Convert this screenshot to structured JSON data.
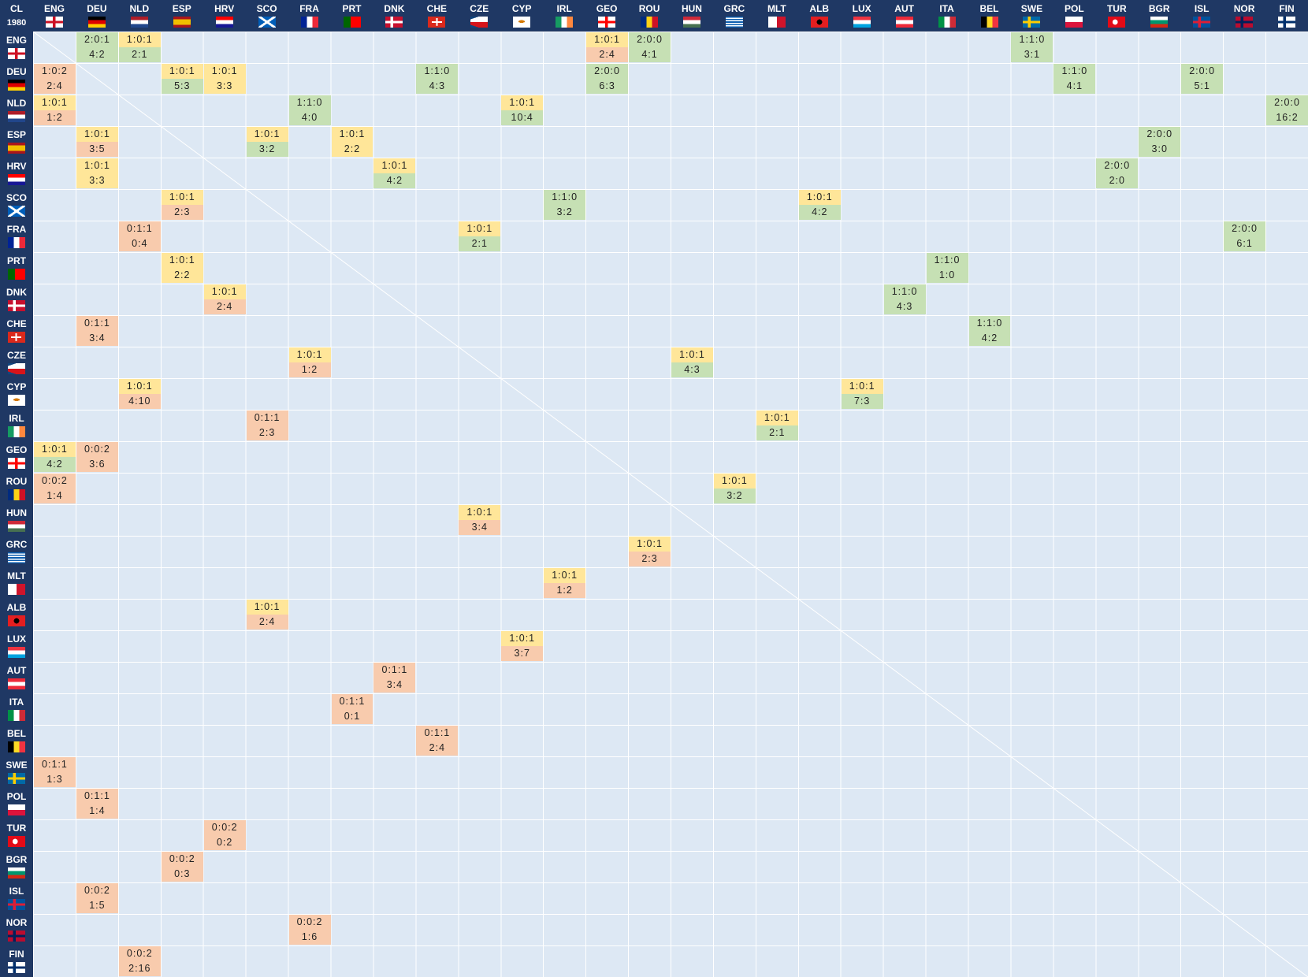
{
  "corner": {
    "label": "CL",
    "year": "1980"
  },
  "teams": [
    "ENG",
    "DEU",
    "NLD",
    "ESP",
    "HRV",
    "SCO",
    "FRA",
    "PRT",
    "DNK",
    "CHE",
    "CZE",
    "CYP",
    "IRL",
    "GEO",
    "ROU",
    "HUN",
    "GRC",
    "MLT",
    "ALB",
    "LUX",
    "AUT",
    "ITA",
    "BEL",
    "SWE",
    "POL",
    "TUR",
    "BGR",
    "ISL",
    "NOR",
    "FIN"
  ],
  "matrix": [
    [
      null,
      {
        "record": "2:0:1",
        "score": "4:2"
      },
      {
        "record": "1:0:1",
        "score": "2:1"
      },
      null,
      null,
      null,
      null,
      null,
      null,
      null,
      null,
      null,
      null,
      {
        "record": "1:0:1",
        "score": "2:4"
      },
      {
        "record": "2:0:0",
        "score": "4:1"
      },
      null,
      null,
      null,
      null,
      null,
      null,
      null,
      null,
      {
        "record": "1:1:0",
        "score": "3:1"
      },
      null,
      null,
      null,
      null,
      null,
      null
    ],
    [
      {
        "record": "1:0:2",
        "score": "2:4"
      },
      null,
      null,
      {
        "record": "1:0:1",
        "score": "5:3"
      },
      {
        "record": "1:0:1",
        "score": "3:3"
      },
      null,
      null,
      null,
      null,
      {
        "record": "1:1:0",
        "score": "4:3"
      },
      null,
      null,
      null,
      {
        "record": "2:0:0",
        "score": "6:3"
      },
      null,
      null,
      null,
      null,
      null,
      null,
      null,
      null,
      null,
      null,
      {
        "record": "1:1:0",
        "score": "4:1"
      },
      null,
      null,
      {
        "record": "2:0:0",
        "score": "5:1"
      },
      null,
      null
    ],
    [
      {
        "record": "1:0:1",
        "score": "1:2"
      },
      null,
      null,
      null,
      null,
      null,
      {
        "record": "1:1:0",
        "score": "4:0"
      },
      null,
      null,
      null,
      null,
      {
        "record": "1:0:1",
        "score": "10:4"
      },
      null,
      null,
      null,
      null,
      null,
      null,
      null,
      null,
      null,
      null,
      null,
      null,
      null,
      null,
      null,
      null,
      null,
      {
        "record": "2:0:0",
        "score": "16:2"
      }
    ],
    [
      null,
      {
        "record": "1:0:1",
        "score": "3:5"
      },
      null,
      null,
      null,
      {
        "record": "1:0:1",
        "score": "3:2"
      },
      null,
      {
        "record": "1:0:1",
        "score": "2:2"
      },
      null,
      null,
      null,
      null,
      null,
      null,
      null,
      null,
      null,
      null,
      null,
      null,
      null,
      null,
      null,
      null,
      null,
      null,
      {
        "record": "2:0:0",
        "score": "3:0"
      },
      null,
      null,
      null
    ],
    [
      null,
      {
        "record": "1:0:1",
        "score": "3:3"
      },
      null,
      null,
      null,
      null,
      null,
      null,
      {
        "record": "1:0:1",
        "score": "4:2"
      },
      null,
      null,
      null,
      null,
      null,
      null,
      null,
      null,
      null,
      null,
      null,
      null,
      null,
      null,
      null,
      null,
      {
        "record": "2:0:0",
        "score": "2:0"
      },
      null,
      null,
      null,
      null
    ],
    [
      null,
      null,
      null,
      {
        "record": "1:0:1",
        "score": "2:3"
      },
      null,
      null,
      null,
      null,
      null,
      null,
      null,
      null,
      {
        "record": "1:1:0",
        "score": "3:2"
      },
      null,
      null,
      null,
      null,
      null,
      {
        "record": "1:0:1",
        "score": "4:2"
      },
      null,
      null,
      null,
      null,
      null,
      null,
      null,
      null,
      null,
      null,
      null
    ],
    [
      null,
      null,
      {
        "record": "0:1:1",
        "score": "0:4"
      },
      null,
      null,
      null,
      null,
      null,
      null,
      null,
      {
        "record": "1:0:1",
        "score": "2:1"
      },
      null,
      null,
      null,
      null,
      null,
      null,
      null,
      null,
      null,
      null,
      null,
      null,
      null,
      null,
      null,
      null,
      null,
      {
        "record": "2:0:0",
        "score": "6:1"
      },
      null
    ],
    [
      null,
      null,
      null,
      {
        "record": "1:0:1",
        "score": "2:2"
      },
      null,
      null,
      null,
      null,
      null,
      null,
      null,
      null,
      null,
      null,
      null,
      null,
      null,
      null,
      null,
      null,
      null,
      {
        "record": "1:1:0",
        "score": "1:0"
      },
      null,
      null,
      null,
      null,
      null,
      null,
      null,
      null
    ],
    [
      null,
      null,
      null,
      null,
      {
        "record": "1:0:1",
        "score": "2:4"
      },
      null,
      null,
      null,
      null,
      null,
      null,
      null,
      null,
      null,
      null,
      null,
      null,
      null,
      null,
      null,
      {
        "record": "1:1:0",
        "score": "4:3"
      },
      null,
      null,
      null,
      null,
      null,
      null,
      null,
      null,
      null
    ],
    [
      null,
      {
        "record": "0:1:1",
        "score": "3:4"
      },
      null,
      null,
      null,
      null,
      null,
      null,
      null,
      null,
      null,
      null,
      null,
      null,
      null,
      null,
      null,
      null,
      null,
      null,
      null,
      null,
      {
        "record": "1:1:0",
        "score": "4:2"
      },
      null,
      null,
      null,
      null,
      null,
      null,
      null
    ],
    [
      null,
      null,
      null,
      null,
      null,
      null,
      {
        "record": "1:0:1",
        "score": "1:2"
      },
      null,
      null,
      null,
      null,
      null,
      null,
      null,
      null,
      {
        "record": "1:0:1",
        "score": "4:3"
      },
      null,
      null,
      null,
      null,
      null,
      null,
      null,
      null,
      null,
      null,
      null,
      null,
      null,
      null
    ],
    [
      null,
      null,
      {
        "record": "1:0:1",
        "score": "4:10"
      },
      null,
      null,
      null,
      null,
      null,
      null,
      null,
      null,
      null,
      null,
      null,
      null,
      null,
      null,
      null,
      null,
      {
        "record": "1:0:1",
        "score": "7:3"
      },
      null,
      null,
      null,
      null,
      null,
      null,
      null,
      null,
      null,
      null
    ],
    [
      null,
      null,
      null,
      null,
      null,
      {
        "record": "0:1:1",
        "score": "2:3"
      },
      null,
      null,
      null,
      null,
      null,
      null,
      null,
      null,
      null,
      null,
      null,
      {
        "record": "1:0:1",
        "score": "2:1"
      },
      null,
      null,
      null,
      null,
      null,
      null,
      null,
      null,
      null,
      null,
      null,
      null
    ],
    [
      {
        "record": "1:0:1",
        "score": "4:2"
      },
      {
        "record": "0:0:2",
        "score": "3:6"
      },
      null,
      null,
      null,
      null,
      null,
      null,
      null,
      null,
      null,
      null,
      null,
      null,
      null,
      null,
      null,
      null,
      null,
      null,
      null,
      null,
      null,
      null,
      null,
      null,
      null,
      null,
      null,
      null
    ],
    [
      {
        "record": "0:0:2",
        "score": "1:4"
      },
      null,
      null,
      null,
      null,
      null,
      null,
      null,
      null,
      null,
      null,
      null,
      null,
      null,
      null,
      null,
      {
        "record": "1:0:1",
        "score": "3:2"
      },
      null,
      null,
      null,
      null,
      null,
      null,
      null,
      null,
      null,
      null,
      null,
      null,
      null
    ],
    [
      null,
      null,
      null,
      null,
      null,
      null,
      null,
      null,
      null,
      null,
      {
        "record": "1:0:1",
        "score": "3:4"
      },
      null,
      null,
      null,
      null,
      null,
      null,
      null,
      null,
      null,
      null,
      null,
      null,
      null,
      null,
      null,
      null,
      null,
      null,
      null
    ],
    [
      null,
      null,
      null,
      null,
      null,
      null,
      null,
      null,
      null,
      null,
      null,
      null,
      null,
      null,
      {
        "record": "1:0:1",
        "score": "2:3"
      },
      null,
      null,
      null,
      null,
      null,
      null,
      null,
      null,
      null,
      null,
      null,
      null,
      null,
      null,
      null
    ],
    [
      null,
      null,
      null,
      null,
      null,
      null,
      null,
      null,
      null,
      null,
      null,
      null,
      {
        "record": "1:0:1",
        "score": "1:2"
      },
      null,
      null,
      null,
      null,
      null,
      null,
      null,
      null,
      null,
      null,
      null,
      null,
      null,
      null,
      null,
      null,
      null
    ],
    [
      null,
      null,
      null,
      null,
      null,
      {
        "record": "1:0:1",
        "score": "2:4"
      },
      null,
      null,
      null,
      null,
      null,
      null,
      null,
      null,
      null,
      null,
      null,
      null,
      null,
      null,
      null,
      null,
      null,
      null,
      null,
      null,
      null,
      null,
      null,
      null
    ],
    [
      null,
      null,
      null,
      null,
      null,
      null,
      null,
      null,
      null,
      null,
      null,
      {
        "record": "1:0:1",
        "score": "3:7"
      },
      null,
      null,
      null,
      null,
      null,
      null,
      null,
      null,
      null,
      null,
      null,
      null,
      null,
      null,
      null,
      null,
      null,
      null
    ],
    [
      null,
      null,
      null,
      null,
      null,
      null,
      null,
      null,
      {
        "record": "0:1:1",
        "score": "3:4"
      },
      null,
      null,
      null,
      null,
      null,
      null,
      null,
      null,
      null,
      null,
      null,
      null,
      null,
      null,
      null,
      null,
      null,
      null,
      null,
      null,
      null
    ],
    [
      null,
      null,
      null,
      null,
      null,
      null,
      null,
      {
        "record": "0:1:1",
        "score": "0:1"
      },
      null,
      null,
      null,
      null,
      null,
      null,
      null,
      null,
      null,
      null,
      null,
      null,
      null,
      null,
      null,
      null,
      null,
      null,
      null,
      null,
      null,
      null
    ],
    [
      null,
      null,
      null,
      null,
      null,
      null,
      null,
      null,
      null,
      {
        "record": "0:1:1",
        "score": "2:4"
      },
      null,
      null,
      null,
      null,
      null,
      null,
      null,
      null,
      null,
      null,
      null,
      null,
      null,
      null,
      null,
      null,
      null,
      null,
      null,
      null
    ],
    [
      {
        "record": "0:1:1",
        "score": "1:3"
      },
      null,
      null,
      null,
      null,
      null,
      null,
      null,
      null,
      null,
      null,
      null,
      null,
      null,
      null,
      null,
      null,
      null,
      null,
      null,
      null,
      null,
      null,
      null,
      null,
      null,
      null,
      null,
      null,
      null
    ],
    [
      null,
      {
        "record": "0:1:1",
        "score": "1:4"
      },
      null,
      null,
      null,
      null,
      null,
      null,
      null,
      null,
      null,
      null,
      null,
      null,
      null,
      null,
      null,
      null,
      null,
      null,
      null,
      null,
      null,
      null,
      null,
      null,
      null,
      null,
      null,
      null
    ],
    [
      null,
      null,
      null,
      null,
      {
        "record": "0:0:2",
        "score": "0:2"
      },
      null,
      null,
      null,
      null,
      null,
      null,
      null,
      null,
      null,
      null,
      null,
      null,
      null,
      null,
      null,
      null,
      null,
      null,
      null,
      null,
      null,
      null,
      null,
      null,
      null
    ],
    [
      null,
      null,
      null,
      {
        "record": "0:0:2",
        "score": "0:3"
      },
      null,
      null,
      null,
      null,
      null,
      null,
      null,
      null,
      null,
      null,
      null,
      null,
      null,
      null,
      null,
      null,
      null,
      null,
      null,
      null,
      null,
      null,
      null,
      null,
      null,
      null
    ],
    [
      null,
      {
        "record": "0:0:2",
        "score": "1:5"
      },
      null,
      null,
      null,
      null,
      null,
      null,
      null,
      null,
      null,
      null,
      null,
      null,
      null,
      null,
      null,
      null,
      null,
      null,
      null,
      null,
      null,
      null,
      null,
      null,
      null,
      null,
      null,
      null
    ],
    [
      null,
      null,
      null,
      null,
      null,
      null,
      {
        "record": "0:0:2",
        "score": "1:6"
      },
      null,
      null,
      null,
      null,
      null,
      null,
      null,
      null,
      null,
      null,
      null,
      null,
      null,
      null,
      null,
      null,
      null,
      null,
      null,
      null,
      null,
      null,
      null
    ],
    [
      null,
      null,
      {
        "record": "0:0:2",
        "score": "2:16"
      },
      null,
      null,
      null,
      null,
      null,
      null,
      null,
      null,
      null,
      null,
      null,
      null,
      null,
      null,
      null,
      null,
      null,
      null,
      null,
      null,
      null,
      null,
      null,
      null,
      null,
      null,
      null
    ]
  ]
}
